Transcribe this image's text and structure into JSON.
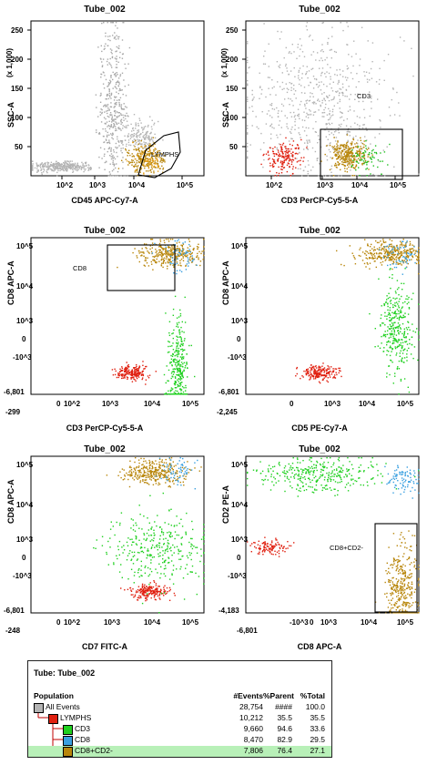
{
  "chart_data": [
    {
      "type": "scatter",
      "title": "Tube_002",
      "xlabel": "CD45 APC-Cy7-A",
      "ylabel": "SSC-A",
      "y_multiplier": "(x 1,000)",
      "x_scale": "log",
      "xlim": [
        10,
        1000000
      ],
      "x_ticks": [
        "10^2",
        "10^3",
        "10^4",
        "10^5"
      ],
      "ylim": [
        0,
        262
      ],
      "y_ticks": [
        "50",
        "100",
        "150",
        "200",
        "250"
      ],
      "gate": {
        "label": "LYMPHS"
      },
      "clusters": [
        {
          "name": "ungated-debris",
          "color": "#b4b4b4",
          "n": 350,
          "x": 70,
          "y": 15
        },
        {
          "name": "ungated-granulocytes",
          "color": "#a8a8a8",
          "n": 420,
          "x": 2200,
          "y": 120
        },
        {
          "name": "ungated-monocytes",
          "color": "#b4b4b4",
          "n": 160,
          "x": 14000,
          "y": 70
        },
        {
          "name": "lymphocytes",
          "color": "#b8860b",
          "n": 260,
          "x": 20000,
          "y": 28
        },
        {
          "name": "lymph-cd8",
          "color": "#e8a018",
          "n": 60,
          "x": 24000,
          "y": 30
        }
      ]
    },
    {
      "type": "scatter",
      "title": "Tube_002",
      "xlabel": "CD3 PerCP-Cy5-5-A",
      "ylabel": "SSC-A",
      "y_multiplier": "(x 1,000)",
      "x_scale": "log",
      "xlim": [
        10,
        1000000
      ],
      "x_ticks": [
        "10^2",
        "10^3",
        "10^4",
        "10^5"
      ],
      "ylim": [
        0,
        262
      ],
      "y_ticks": [
        "50",
        "100",
        "150",
        "200",
        "250"
      ],
      "gate": {
        "label": "CD3"
      },
      "clusters": [
        {
          "name": "ungated",
          "color": "#b4b4b4",
          "n": 650,
          "x": 1000,
          "y": 120
        },
        {
          "name": "cd3-negative",
          "color": "#e02010",
          "n": 180,
          "x": 120,
          "y": 30
        },
        {
          "name": "cd8",
          "color": "#b8860b",
          "n": 330,
          "x": 9000,
          "y": 35
        },
        {
          "name": "cd3-other",
          "color": "#20c020",
          "n": 70,
          "x": 30000,
          "y": 30
        }
      ]
    },
    {
      "type": "scatter",
      "title": "Tube_002",
      "xlabel": "CD3 PerCP-Cy5-5-A",
      "ylabel": "CD8 APC-A",
      "x_scale": "biexponential",
      "y_scale": "biexponential",
      "x_ticks": [
        "-299",
        "0",
        "10^2",
        "10^3",
        "10^4",
        "10^5"
      ],
      "y_ticks": [
        "-6,801",
        "-10^3",
        "0",
        "10^3",
        "10^4",
        "10^5"
      ],
      "gate": {
        "label": "CD8"
      },
      "clusters": [
        {
          "name": "cd3-negative",
          "color": "#e02010",
          "n": 200,
          "x": 30,
          "y": -500
        },
        {
          "name": "cd4-like",
          "color": "#20d020",
          "n": 330,
          "x": 12000,
          "y": -300
        },
        {
          "name": "cd8",
          "color": "#b8860b",
          "n": 330,
          "x": 5000,
          "y": 40000
        },
        {
          "name": "cd8-cd2-positive",
          "color": "#3aa0e0",
          "n": 60,
          "x": 11000,
          "y": 30000
        }
      ]
    },
    {
      "type": "scatter",
      "title": "Tube_002",
      "xlabel": "CD5 PE-Cy7-A",
      "ylabel": "CD8 APC-A",
      "x_scale": "biexponential",
      "y_scale": "biexponential",
      "x_ticks": [
        "-2,245",
        "0",
        "10^3",
        "10^4",
        "10^5"
      ],
      "y_ticks": [
        "-6,801",
        "-10^3",
        "0",
        "10^3",
        "10^4",
        "10^5"
      ],
      "clusters": [
        {
          "name": "cd3-negative",
          "color": "#e02010",
          "n": 200,
          "x": 0,
          "y": -500
        },
        {
          "name": "cd4-like",
          "color": "#20d020",
          "n": 330,
          "x": 20000,
          "y": 0
        },
        {
          "name": "cd8",
          "color": "#b8860b",
          "n": 330,
          "x": 8000,
          "y": 40000
        },
        {
          "name": "cd8-cd2-positive",
          "color": "#3aa0e0",
          "n": 60,
          "x": 30000,
          "y": 30000
        }
      ]
    },
    {
      "type": "scatter",
      "title": "Tube_002",
      "xlabel": "CD7 FITC-A",
      "ylabel": "CD8 APC-A",
      "x_scale": "biexponential",
      "y_scale": "biexponential",
      "x_ticks": [
        "-248",
        "0",
        "10^2",
        "10^3",
        "10^4",
        "10^5"
      ],
      "y_ticks": [
        "-6,801",
        "-10^3",
        "0",
        "10^3",
        "10^4",
        "10^5"
      ],
      "clusters": [
        {
          "name": "cd3-negative",
          "color": "#e02010",
          "n": 200,
          "x": 300,
          "y": -500
        },
        {
          "name": "cd4-like",
          "color": "#20d020",
          "n": 330,
          "x": 1000,
          "y": 0
        },
        {
          "name": "cd8",
          "color": "#b8860b",
          "n": 330,
          "x": 600,
          "y": 40000
        },
        {
          "name": "cd8-cd2-positive",
          "color": "#3aa0e0",
          "n": 60,
          "x": 10000,
          "y": 50000
        }
      ]
    },
    {
      "type": "scatter",
      "title": "Tube_002",
      "xlabel": "CD8 APC-A",
      "ylabel": "CD2 PE-A",
      "x_scale": "biexponential",
      "y_scale": "biexponential",
      "x_ticks": [
        "-6,801",
        "-10^3",
        "0",
        "10^3",
        "10^4",
        "10^5"
      ],
      "y_ticks": [
        "-4,183",
        "-10^3",
        "0",
        "10^3",
        "10^4",
        "10^5"
      ],
      "gate": {
        "label": "CD8+CD2-"
      },
      "clusters": [
        {
          "name": "cd3-negative",
          "color": "#e02010",
          "n": 110,
          "x": -500,
          "y": 0
        },
        {
          "name": "cd4-like",
          "color": "#20d020",
          "n": 330,
          "x": 0,
          "y": 30000
        },
        {
          "name": "cd8-cd2-positive",
          "color": "#3aa0e0",
          "n": 90,
          "x": 45000,
          "y": 15000
        },
        {
          "name": "cd8-cd2-negative",
          "color": "#b8860b",
          "n": 380,
          "x": 40000,
          "y": -500
        }
      ]
    }
  ],
  "stats": {
    "title": "Tube:  Tube_002",
    "headers": [
      "Population",
      "#Events",
      "%Parent",
      "%Total"
    ],
    "rows": [
      {
        "name": "All Events",
        "color": "#b4b4b4",
        "events": "28,754",
        "parent": "####",
        "total": "100.0",
        "highlight": false
      },
      {
        "name": "LYMPHS",
        "color": "#e02010",
        "events": "10,212",
        "parent": "35.5",
        "total": "35.5",
        "highlight": false
      },
      {
        "name": "CD3",
        "color": "#20d020",
        "events": "9,660",
        "parent": "94.6",
        "total": "33.6",
        "highlight": false
      },
      {
        "name": "CD8",
        "color": "#3aa0e0",
        "events": "8,470",
        "parent": "82.9",
        "total": "29.5",
        "highlight": false
      },
      {
        "name": "CD8+CD2-",
        "color": "#b8860b",
        "events": "7,806",
        "parent": "76.4",
        "total": "27.1",
        "highlight": true
      }
    ]
  },
  "colors": {
    "highlight_row": "#b8f0b8",
    "gate_line": "#000000"
  }
}
